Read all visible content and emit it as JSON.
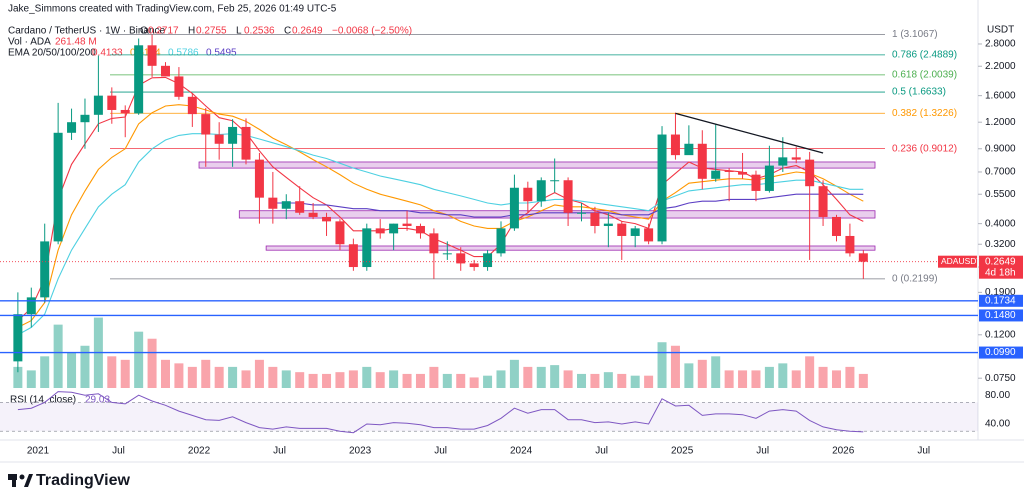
{
  "header": {
    "author": "Jake_Simmons created with TradingView.com, Feb 25, 2026 01:49 UTC-5",
    "symbol": "Cardano / TetherUS · 1W · Binance",
    "ohlc_labels": [
      "O",
      "H",
      "L",
      "C"
    ],
    "ohlc": [
      0.2717,
      0.2755,
      0.2536,
      0.2649
    ],
    "change": "−0.0068 (−2.50%)",
    "volume_label": "Vol · ADA",
    "volume_value": "261.48 M",
    "ema_label": "EMA 20/50/100/200",
    "ema_values": [
      0.4133,
      0.5124,
      0.5786,
      0.5495
    ],
    "rsi_label": "RSI (14, close)",
    "rsi_value": 29.03,
    "axis_unit": "USDT",
    "logo": "TradingView"
  },
  "chart_data": {
    "type": "candlestick",
    "log_scale": true,
    "x": [
      "2020-11",
      "2020-12",
      "2021-01",
      "2021-02",
      "2021-03",
      "2021-04",
      "2021-05",
      "2021-06",
      "2021-07",
      "2021-08",
      "2021-09",
      "2021-10",
      "2021-11",
      "2021-12",
      "2022-01",
      "2022-02",
      "2022-03",
      "2022-04",
      "2022-05",
      "2022-06",
      "2022-07",
      "2022-08",
      "2022-09",
      "2022-10",
      "2022-11",
      "2022-12",
      "2023-01",
      "2023-02",
      "2023-03",
      "2023-04",
      "2023-05",
      "2023-06",
      "2023-07",
      "2023-08",
      "2023-09",
      "2023-10",
      "2023-11",
      "2023-12",
      "2024-01",
      "2024-02",
      "2024-03",
      "2024-04",
      "2024-05",
      "2024-06",
      "2024-07",
      "2024-08",
      "2024-09",
      "2024-10",
      "2024-11",
      "2024-12",
      "2025-01",
      "2025-02",
      "2025-03",
      "2025-04",
      "2025-05",
      "2025-06",
      "2025-07",
      "2025-08",
      "2025-09",
      "2025-10",
      "2025-11",
      "2025-12",
      "2026-01",
      "2026-02"
    ],
    "open": [
      0.09,
      0.15,
      0.18,
      0.33,
      1.07,
      1.2,
      1.3,
      1.6,
      1.37,
      1.32,
      2.76,
      2.21,
      1.97,
      1.58,
      1.31,
      1.05,
      0.95,
      1.14,
      0.8,
      0.53,
      0.47,
      0.51,
      0.45,
      0.43,
      0.41,
      0.32,
      0.25,
      0.38,
      0.36,
      0.4,
      0.39,
      0.36,
      0.29,
      0.29,
      0.26,
      0.25,
      0.29,
      0.38,
      0.59,
      0.51,
      0.64,
      0.64,
      0.45,
      0.45,
      0.39,
      0.4,
      0.35,
      0.38,
      0.33,
      1.05,
      0.84,
      0.95,
      0.65,
      0.71,
      0.7,
      0.68,
      0.57,
      0.75,
      0.82,
      0.8,
      0.6,
      0.43,
      0.35,
      0.29
    ],
    "high": [
      0.19,
      0.2,
      0.4,
      1.48,
      1.39,
      1.55,
      2.47,
      1.75,
      1.44,
      2.97,
      3.1,
      2.3,
      2.18,
      1.64,
      1.4,
      1.2,
      1.24,
      1.25,
      0.86,
      0.7,
      0.55,
      0.6,
      0.5,
      0.45,
      0.42,
      0.34,
      0.4,
      0.42,
      0.4,
      0.46,
      0.4,
      0.38,
      0.33,
      0.31,
      0.27,
      0.3,
      0.41,
      0.68,
      0.63,
      0.66,
      0.81,
      0.66,
      0.5,
      0.48,
      0.45,
      0.41,
      0.39,
      0.4,
      1.15,
      1.33,
      1.16,
      1.1,
      1.18,
      0.73,
      0.86,
      0.71,
      0.93,
      1.02,
      0.92,
      0.87,
      0.64,
      0.44,
      0.4,
      0.3
    ],
    "low": [
      0.08,
      0.13,
      0.17,
      0.32,
      0.99,
      0.9,
      1.08,
      1.18,
      1.02,
      1.3,
      1.96,
      1.99,
      1.53,
      1.14,
      0.74,
      0.8,
      0.74,
      0.76,
      0.4,
      0.4,
      0.42,
      0.44,
      0.42,
      0.35,
      0.3,
      0.24,
      0.24,
      0.34,
      0.3,
      0.37,
      0.34,
      0.22,
      0.27,
      0.24,
      0.24,
      0.24,
      0.28,
      0.37,
      0.45,
      0.48,
      0.56,
      0.39,
      0.41,
      0.36,
      0.31,
      0.27,
      0.31,
      0.32,
      0.32,
      0.8,
      0.85,
      0.58,
      0.63,
      0.51,
      0.65,
      0.51,
      0.56,
      0.7,
      0.77,
      0.27,
      0.39,
      0.33,
      0.28,
      0.22
    ],
    "close": [
      0.15,
      0.18,
      0.33,
      1.07,
      1.2,
      1.3,
      1.6,
      1.37,
      1.32,
      2.76,
      2.21,
      1.97,
      1.58,
      1.31,
      1.05,
      0.95,
      1.14,
      0.8,
      0.53,
      0.47,
      0.51,
      0.45,
      0.43,
      0.41,
      0.32,
      0.25,
      0.38,
      0.36,
      0.4,
      0.39,
      0.36,
      0.29,
      0.29,
      0.26,
      0.25,
      0.29,
      0.38,
      0.59,
      0.51,
      0.64,
      0.64,
      0.45,
      0.45,
      0.39,
      0.4,
      0.35,
      0.38,
      0.33,
      1.05,
      0.84,
      0.95,
      0.65,
      0.71,
      0.7,
      0.68,
      0.57,
      0.75,
      0.82,
      0.8,
      0.6,
      0.43,
      0.35,
      0.29,
      0.2649
    ],
    "up_color": "#089981",
    "down_color": "#f23645",
    "ylim": [
      0.066,
      3.63
    ],
    "yticks": [
      {
        "value": 2.8,
        "label": "2.8000"
      },
      {
        "value": 2.2,
        "label": "2.2000"
      },
      {
        "value": 1.6,
        "label": "1.6000"
      },
      {
        "value": 1.2,
        "label": "1.2000"
      },
      {
        "value": 0.9,
        "label": "0.9000"
      },
      {
        "value": 0.7,
        "label": "0.7000"
      },
      {
        "value": 0.55,
        "label": "0.5500"
      },
      {
        "value": 0.4,
        "label": "0.4000"
      },
      {
        "value": 0.32,
        "label": "0.3200"
      },
      {
        "value": 0.25,
        "label": "0.2500"
      },
      {
        "value": 0.19,
        "label": "0.1900"
      },
      {
        "value": 0.12,
        "label": "0.1200"
      },
      {
        "value": 0.075,
        "label": "0.0750"
      }
    ],
    "xticks": [
      {
        "value": "2021-01",
        "label": "2021"
      },
      {
        "value": "2021-07",
        "label": "Jul"
      },
      {
        "value": "2022-01",
        "label": "2022"
      },
      {
        "value": "2022-07",
        "label": "Jul"
      },
      {
        "value": "2023-01",
        "label": "2023"
      },
      {
        "value": "2023-07",
        "label": "Jul"
      },
      {
        "value": "2024-01",
        "label": "2024"
      },
      {
        "value": "2024-07",
        "label": "Jul"
      },
      {
        "value": "2025-01",
        "label": "2025"
      },
      {
        "value": "2025-07",
        "label": "Jul"
      },
      {
        "value": "2026-01",
        "label": "2026"
      },
      {
        "value": "2026-07",
        "label": "Jul"
      }
    ],
    "ema": [
      {
        "color": "#f23645",
        "values": [
          0.14,
          0.16,
          0.22,
          0.52,
          0.76,
          0.95,
          1.18,
          1.25,
          1.27,
          1.79,
          1.94,
          1.95,
          1.82,
          1.64,
          1.43,
          1.26,
          1.22,
          1.07,
          0.88,
          0.74,
          0.66,
          0.59,
          0.53,
          0.49,
          0.43,
          0.37,
          0.37,
          0.37,
          0.38,
          0.38,
          0.37,
          0.34,
          0.32,
          0.3,
          0.28,
          0.28,
          0.32,
          0.41,
          0.45,
          0.52,
          0.56,
          0.52,
          0.5,
          0.46,
          0.44,
          0.41,
          0.4,
          0.38,
          0.61,
          0.69,
          0.78,
          0.73,
          0.72,
          0.71,
          0.7,
          0.65,
          0.68,
          0.73,
          0.75,
          0.7,
          0.61,
          0.52,
          0.44,
          0.41
        ]
      },
      {
        "color": "#ff9800",
        "values": [
          0.13,
          0.14,
          0.17,
          0.3,
          0.44,
          0.57,
          0.72,
          0.82,
          0.9,
          1.18,
          1.33,
          1.43,
          1.45,
          1.43,
          1.37,
          1.31,
          1.28,
          1.21,
          1.11,
          1.01,
          0.94,
          0.87,
          0.8,
          0.74,
          0.68,
          0.62,
          0.58,
          0.55,
          0.53,
          0.51,
          0.49,
          0.46,
          0.44,
          0.41,
          0.39,
          0.38,
          0.38,
          0.41,
          0.43,
          0.46,
          0.49,
          0.48,
          0.48,
          0.47,
          0.46,
          0.44,
          0.43,
          0.42,
          0.51,
          0.56,
          0.62,
          0.63,
          0.64,
          0.65,
          0.65,
          0.64,
          0.66,
          0.68,
          0.7,
          0.69,
          0.65,
          0.6,
          0.55,
          0.51
        ]
      },
      {
        "color": "#4dd0e1",
        "values": [
          0.12,
          0.13,
          0.15,
          0.22,
          0.3,
          0.38,
          0.48,
          0.55,
          0.61,
          0.78,
          0.9,
          0.99,
          1.04,
          1.06,
          1.06,
          1.05,
          1.06,
          1.04,
          1.0,
          0.96,
          0.92,
          0.88,
          0.84,
          0.81,
          0.77,
          0.73,
          0.7,
          0.67,
          0.65,
          0.63,
          0.61,
          0.58,
          0.56,
          0.54,
          0.52,
          0.5,
          0.49,
          0.5,
          0.5,
          0.51,
          0.52,
          0.52,
          0.51,
          0.5,
          0.49,
          0.48,
          0.47,
          0.46,
          0.51,
          0.54,
          0.57,
          0.58,
          0.59,
          0.6,
          0.61,
          0.61,
          0.62,
          0.63,
          0.64,
          0.64,
          0.62,
          0.6,
          0.58,
          0.58
        ]
      },
      {
        "color": "#5c3fc4",
        "values": [
          null,
          null,
          null,
          null,
          null,
          null,
          null,
          null,
          null,
          null,
          null,
          null,
          null,
          null,
          null,
          null,
          null,
          null,
          null,
          0.5,
          0.5,
          0.5,
          0.49,
          0.49,
          0.48,
          0.47,
          0.47,
          0.46,
          0.46,
          0.46,
          0.45,
          0.45,
          0.44,
          0.44,
          0.43,
          0.43,
          0.43,
          0.44,
          0.44,
          0.45,
          0.45,
          0.45,
          0.45,
          0.45,
          0.45,
          0.44,
          0.44,
          0.44,
          0.47,
          0.48,
          0.5,
          0.51,
          0.51,
          0.52,
          0.52,
          0.52,
          0.53,
          0.54,
          0.55,
          0.55,
          0.55,
          0.55,
          0.55,
          0.5495
        ]
      }
    ],
    "volume": {
      "values": [
        6000,
        5000,
        9000,
        18000,
        10000,
        12000,
        20000,
        9000,
        8000,
        16000,
        14000,
        8000,
        7000,
        6000,
        8000,
        6000,
        6000,
        5000,
        8000,
        6000,
        5000,
        4500,
        4000,
        4000,
        4500,
        5000,
        6000,
        4500,
        5000,
        4000,
        4000,
        6000,
        4000,
        4000,
        3000,
        3500,
        5000,
        8000,
        6000,
        6000,
        6500,
        5000,
        4000,
        4000,
        4500,
        4000,
        3500,
        3500,
        13000,
        12000,
        7000,
        8000,
        9000,
        5000,
        5000,
        5000,
        6000,
        7000,
        5000,
        9000,
        6000,
        5000,
        6000,
        4000
      ],
      "ylim": [
        0,
        25000
      ]
    },
    "rsi": {
      "values": [
        60,
        62,
        70,
        85,
        84,
        80,
        82,
        70,
        68,
        80,
        72,
        66,
        58,
        52,
        46,
        45,
        50,
        42,
        35,
        33,
        36,
        34,
        34,
        34,
        30,
        28,
        40,
        39,
        42,
        41,
        39,
        35,
        35,
        33,
        33,
        38,
        48,
        62,
        55,
        60,
        60,
        46,
        46,
        42,
        43,
        40,
        43,
        40,
        75,
        65,
        66,
        52,
        54,
        54,
        53,
        48,
        58,
        60,
        58,
        45,
        36,
        32,
        30,
        29.03
      ],
      "color": "#7e57c2",
      "ylim": [
        22,
        90
      ],
      "yticks": [
        {
          "value": 80,
          "label": "80.00"
        },
        {
          "value": 40,
          "label": "40.00"
        }
      ],
      "bands": [
        30,
        70
      ]
    },
    "fib_levels": [
      {
        "label": "1 (3.1067)",
        "value": 3.1067,
        "color": "#787b86"
      },
      {
        "label": "0.786 (2.4889)",
        "value": 2.4889,
        "color": "#089981"
      },
      {
        "label": "0.618 (2.0039)",
        "value": 2.0039,
        "color": "#4caf50"
      },
      {
        "label": "0.5 (1.6633)",
        "value": 1.6633,
        "color": "#089981"
      },
      {
        "label": "0.382 (1.3226)",
        "value": 1.3226,
        "color": "#ff9800"
      },
      {
        "label": "0.236 (0.9012)",
        "value": 0.9012,
        "color": "#f23645"
      },
      {
        "label": "0 (0.2199)",
        "value": 0.2199,
        "color": "#787b86"
      }
    ],
    "support_levels": [
      {
        "value": 0.1734,
        "label": "0.1734"
      },
      {
        "value": 0.148,
        "label": "0.1480"
      },
      {
        "value": 0.099,
        "label": "0.0990"
      }
    ],
    "zones": [
      {
        "from": "2022-01",
        "top": 0.78,
        "bottom": 0.73
      },
      {
        "from": "2022-04",
        "top": 0.46,
        "bottom": 0.425
      },
      {
        "from": "2022-06",
        "top": 0.314,
        "bottom": 0.3
      }
    ],
    "trendline": {
      "x": [
        "2024-12",
        "2025-11"
      ],
      "y": [
        1.32,
        0.86
      ]
    },
    "last_price": {
      "symbol": "ADAUSDT",
      "value": 0.2649,
      "countdown": "4d 18h"
    }
  }
}
